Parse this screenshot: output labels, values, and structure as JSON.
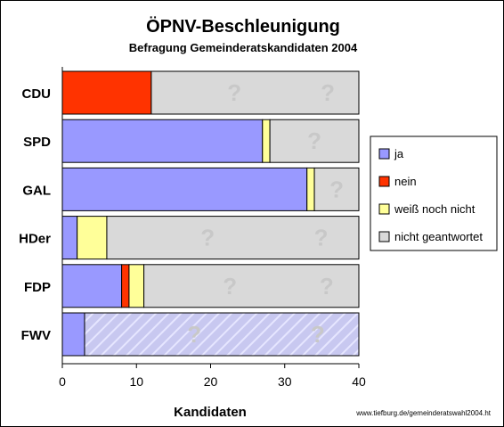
{
  "chart_data": {
    "type": "bar",
    "orientation": "horizontal",
    "stacked": true,
    "title": "ÖPNV-Beschleunigung",
    "subtitle": "Befragung Gemeinderatskandidaten 2004",
    "xlabel": "Kandidaten",
    "xlim": [
      0,
      40
    ],
    "xticks": [
      "0",
      "10",
      "20",
      "30",
      "40"
    ],
    "categories": [
      "CDU",
      "SPD",
      "GAL",
      "HDer",
      "FDP",
      "FWV"
    ],
    "series": [
      {
        "name": "ja",
        "color": "#9999ff",
        "values": [
          0,
          27,
          33,
          2,
          8,
          3
        ]
      },
      {
        "name": "nein",
        "color": "#ff3300",
        "values": [
          12,
          0,
          0,
          0,
          1,
          0
        ]
      },
      {
        "name": "weiß noch nicht",
        "color": "#ffff99",
        "values": [
          0,
          1,
          1,
          4,
          2,
          0
        ]
      },
      {
        "name": "nicht geantwortet",
        "color": "#d9d9d9",
        "values": [
          28,
          12,
          6,
          34,
          29,
          37
        ]
      }
    ],
    "question_mark": "?",
    "legend_position": "right",
    "source": "www.tiefburg.de/gemeinderatswahl2004.ht"
  }
}
